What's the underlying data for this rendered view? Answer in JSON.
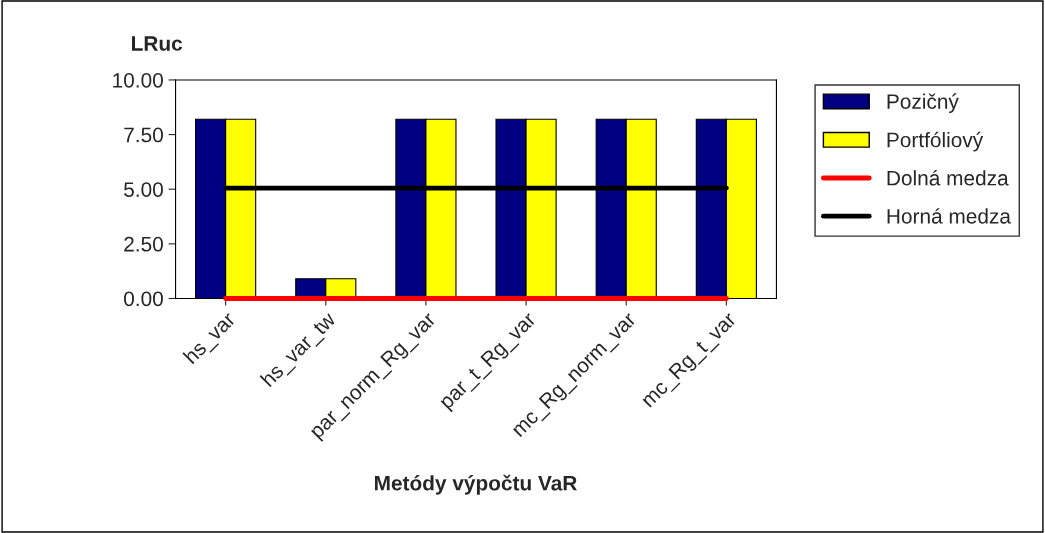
{
  "chart_data": {
    "type": "bar",
    "ylabel": "LRuc",
    "xlabel": "Metódy výpočtu VaR",
    "categories": [
      "hs_var",
      "hs_var_tw",
      "par_norm_Rg_var",
      "par_t_Rg_var",
      "mc_Rg_norm_var",
      "mc_Rg_t_var"
    ],
    "series": [
      {
        "name": "Pozičný",
        "color": "#000080",
        "values": [
          8.2,
          0.9,
          8.2,
          8.2,
          8.2,
          8.2
        ]
      },
      {
        "name": "Portfóliový",
        "color": "#ffff00",
        "values": [
          8.2,
          0.9,
          8.2,
          8.2,
          8.2,
          8.2
        ]
      },
      {
        "name": "Dolná medza",
        "type": "line",
        "color": "#ff0000",
        "values": [
          0,
          0,
          0,
          0,
          0,
          0
        ]
      },
      {
        "name": "Horná medza",
        "type": "line",
        "color": "#000000",
        "values": [
          5.05,
          5.05,
          5.05,
          5.05,
          5.05,
          5.05
        ]
      }
    ],
    "ylim": [
      0,
      10
    ],
    "yticks": [
      {
        "value": 0,
        "label": "0.00"
      },
      {
        "value": 2.5,
        "label": "2.50"
      },
      {
        "value": 5,
        "label": "5.00"
      },
      {
        "value": 7.5,
        "label": "7.50"
      },
      {
        "value": 10,
        "label": "10.00"
      }
    ],
    "grid": false,
    "legend": "right"
  }
}
